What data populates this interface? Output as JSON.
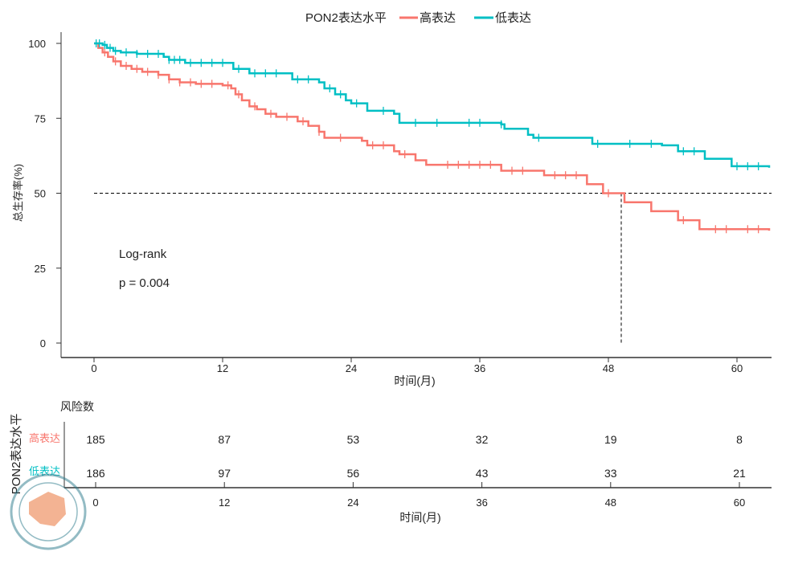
{
  "chart_data": {
    "type": "line",
    "subtype": "kaplan-meier",
    "legend": {
      "title": "PON2表达水平",
      "position": "top",
      "entries": [
        "高表达",
        "低表达"
      ]
    },
    "xlabel": "时间(月)",
    "ylabel": "总生存率(%)",
    "xlim": [
      0,
      63
    ],
    "ylim": [
      0,
      100
    ],
    "xticks": [
      0,
      12,
      24,
      36,
      48,
      60
    ],
    "yticks": [
      0,
      25,
      50,
      75,
      100
    ],
    "annotation": [
      "Log-rank",
      "p = 0.004"
    ],
    "median_line": {
      "y": 50,
      "x": 49.2
    },
    "series": [
      {
        "name": "高表达",
        "color": "#F8766D",
        "steps": [
          [
            0,
            100
          ],
          [
            0.4,
            98.5
          ],
          [
            0.8,
            97
          ],
          [
            1.3,
            95.5
          ],
          [
            1.8,
            94
          ],
          [
            2.5,
            92.5
          ],
          [
            3.5,
            91.5
          ],
          [
            4.5,
            90.5
          ],
          [
            6,
            89.5
          ],
          [
            7,
            88
          ],
          [
            8,
            87
          ],
          [
            9.5,
            86.5
          ],
          [
            12,
            86
          ],
          [
            12.8,
            85
          ],
          [
            13.2,
            83
          ],
          [
            13.8,
            81
          ],
          [
            14.5,
            79
          ],
          [
            15.2,
            78
          ],
          [
            16,
            76.5
          ],
          [
            17,
            75.5
          ],
          [
            19,
            74
          ],
          [
            20,
            72.5
          ],
          [
            21,
            70.5
          ],
          [
            21.5,
            68.5
          ],
          [
            25,
            67.5
          ],
          [
            25.5,
            66
          ],
          [
            28,
            64
          ],
          [
            28.5,
            63
          ],
          [
            30,
            61
          ],
          [
            31,
            59.5
          ],
          [
            38,
            57.5
          ],
          [
            42,
            56
          ],
          [
            46,
            53
          ],
          [
            47.5,
            50
          ],
          [
            49.5,
            47
          ],
          [
            52,
            44
          ],
          [
            54.5,
            41
          ],
          [
            56.5,
            38
          ],
          [
            63,
            37.5
          ]
        ],
        "censors": [
          1,
          2,
          3,
          4,
          5,
          6,
          7,
          8,
          9,
          10,
          11,
          12.5,
          13.5,
          15,
          16.5,
          18,
          19.5,
          21,
          23,
          26,
          27,
          29,
          33,
          34,
          35,
          36,
          37,
          39,
          40,
          43,
          44,
          45,
          48,
          55,
          58,
          59,
          61,
          62
        ]
      },
      {
        "name": "低表达",
        "color": "#00BFC4",
        "steps": [
          [
            0,
            100
          ],
          [
            0.8,
            99.5
          ],
          [
            1.2,
            98.5
          ],
          [
            1.8,
            97.5
          ],
          [
            2.5,
            97
          ],
          [
            4,
            96.5
          ],
          [
            6.5,
            95.5
          ],
          [
            7,
            94.5
          ],
          [
            8.5,
            93.5
          ],
          [
            13,
            91.5
          ],
          [
            14.5,
            90
          ],
          [
            18.5,
            88
          ],
          [
            21,
            87
          ],
          [
            21.5,
            85
          ],
          [
            22.5,
            83
          ],
          [
            23.5,
            81
          ],
          [
            24,
            80
          ],
          [
            25.5,
            77.5
          ],
          [
            28,
            76.5
          ],
          [
            28.5,
            73.5
          ],
          [
            38,
            73
          ],
          [
            38.3,
            71.5
          ],
          [
            40.5,
            69.5
          ],
          [
            41,
            68.5
          ],
          [
            46.5,
            66.5
          ],
          [
            53,
            66
          ],
          [
            54.5,
            64
          ],
          [
            57,
            61.5
          ],
          [
            59.5,
            59
          ],
          [
            63,
            58.5
          ]
        ],
        "censors": [
          0.2,
          0.5,
          1,
          1.5,
          2,
          3,
          4,
          5,
          6,
          7,
          7.5,
          8,
          9,
          10,
          11,
          12,
          13.5,
          15,
          16,
          17,
          19,
          20,
          22,
          23,
          24.5,
          27,
          30,
          32,
          35,
          36,
          38,
          41.5,
          47,
          50,
          52,
          55,
          56,
          60,
          61,
          62
        ]
      }
    ]
  },
  "risk_table": {
    "title": "风险数",
    "ylabel": "PON2表达水平",
    "rows": [
      {
        "label": "高表达",
        "values": [
          185,
          87,
          53,
          32,
          19,
          8
        ]
      },
      {
        "label": "低表达",
        "values": [
          186,
          97,
          56,
          43,
          33,
          21
        ]
      }
    ],
    "xticks": [
      0,
      12,
      24,
      36,
      48,
      60
    ],
    "xlabel": "时间(月)"
  }
}
